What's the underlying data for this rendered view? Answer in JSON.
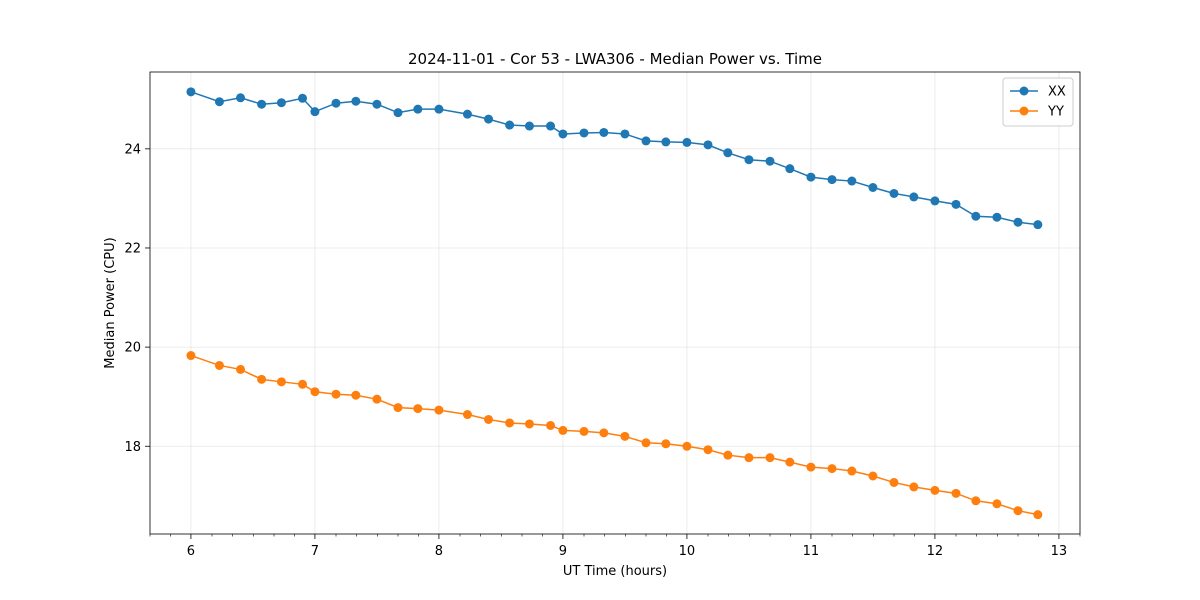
{
  "chart_data": {
    "type": "line",
    "title": "2024-11-01 - Cor 53 - LWA306 - Median Power vs. Time",
    "xlabel": "UT Time (hours)",
    "ylabel": "Median Power (CPU)",
    "xlim": [
      5.67,
      13.17
    ],
    "ylim": [
      16.23,
      25.55
    ],
    "xticks": [
      6,
      7,
      8,
      9,
      10,
      11,
      12,
      13
    ],
    "yticks": [
      18,
      20,
      22,
      24
    ],
    "grid": true,
    "legend_position": "top-right",
    "x": [
      6.0,
      6.23,
      6.4,
      6.57,
      6.73,
      6.9,
      7.0,
      7.17,
      7.33,
      7.5,
      7.67,
      7.83,
      8.0,
      8.23,
      8.4,
      8.57,
      8.73,
      8.9,
      9.0,
      9.17,
      9.33,
      9.5,
      9.67,
      9.83,
      10.0,
      10.17,
      10.33,
      10.5,
      10.67,
      10.83,
      11.0,
      11.17,
      11.33,
      11.5,
      11.67,
      11.83,
      12.0,
      12.17,
      12.33,
      12.5,
      12.67,
      12.83
    ],
    "series": [
      {
        "name": "XX",
        "color": "#1f77b4",
        "values": [
          25.15,
          24.95,
          25.03,
          24.9,
          24.93,
          25.02,
          24.75,
          24.92,
          24.96,
          24.9,
          24.73,
          24.8,
          24.8,
          24.7,
          24.6,
          24.48,
          24.46,
          24.46,
          24.3,
          24.32,
          24.33,
          24.3,
          24.16,
          24.14,
          24.13,
          24.08,
          23.92,
          23.78,
          23.75,
          23.6,
          23.43,
          23.38,
          23.35,
          23.22,
          23.1,
          23.03,
          22.95,
          22.88,
          22.64,
          22.62,
          22.52,
          22.47
        ]
      },
      {
        "name": "YY",
        "color": "#ff7f0e",
        "values": [
          19.83,
          19.63,
          19.55,
          19.35,
          19.3,
          19.25,
          19.1,
          19.05,
          19.03,
          18.95,
          18.78,
          18.76,
          18.73,
          18.64,
          18.54,
          18.47,
          18.45,
          18.42,
          18.32,
          18.3,
          18.27,
          18.2,
          18.07,
          18.05,
          18.0,
          17.93,
          17.82,
          17.77,
          17.77,
          17.68,
          17.58,
          17.55,
          17.5,
          17.4,
          17.27,
          17.18,
          17.11,
          17.05,
          16.9,
          16.84,
          16.7,
          16.62
        ]
      }
    ]
  }
}
